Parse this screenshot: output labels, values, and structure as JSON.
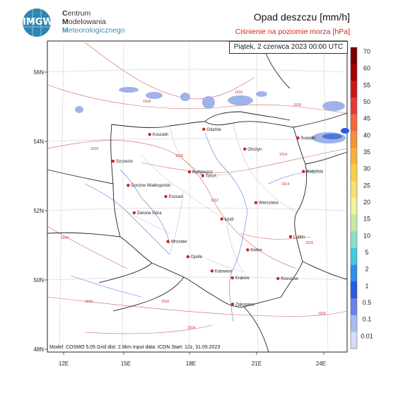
{
  "header": {
    "logo_text": "IMGW",
    "org_line1_initial": "C",
    "org_line1_rest": "entrum",
    "org_line2_initial": "M",
    "org_line2_rest": "odelowania",
    "org_line3_initial": "M",
    "org_line3_rest": "eteorologicznego",
    "title": "Opad deszczu [mm/h]",
    "subtitle": "Ciśnienie na poziomie morza [hPa]",
    "date": "Piątek, 2 czerwca 2023 00:00 UTC"
  },
  "footer": {
    "model_info": "Model: COSMO 5.05  Grid dist: 2.8km  Input data: ICON  Start: 12z, 31.05.2023"
  },
  "colors": {
    "rain_light": "#9fb3e8",
    "rain_medium": "#4a78d8",
    "isobar": "#d06060",
    "border": "#222222",
    "river": "#4a6ad8"
  },
  "axes": {
    "lon_labels": [
      "12E",
      "15E",
      "18E",
      "21E",
      "24E"
    ],
    "lat_labels": [
      "56N",
      "54N",
      "52N",
      "50N",
      "48N"
    ]
  },
  "cities": [
    {
      "name": "Koszalin",
      "lon": 16.2,
      "lat": 54.2
    },
    {
      "name": "Gdańsk",
      "lon": 18.65,
      "lat": 54.35
    },
    {
      "name": "Suwałki",
      "lon": 22.9,
      "lat": 54.1
    },
    {
      "name": "Olsztyn",
      "lon": 20.5,
      "lat": 53.78
    },
    {
      "name": "Szczecin",
      "lon": 14.55,
      "lat": 53.43
    },
    {
      "name": "Bydgoszcz",
      "lon": 18.0,
      "lat": 53.12
    },
    {
      "name": "Toruń",
      "lon": 18.6,
      "lat": 53.01
    },
    {
      "name": "Białystok",
      "lon": 23.15,
      "lat": 53.13
    },
    {
      "name": "Gorzów Wielkopolski",
      "lon": 15.23,
      "lat": 52.73
    },
    {
      "name": "Poznań",
      "lon": 16.93,
      "lat": 52.41
    },
    {
      "name": "Warszawa",
      "lon": 21.0,
      "lat": 52.23
    },
    {
      "name": "Zielona Góra",
      "lon": 15.5,
      "lat": 51.94
    },
    {
      "name": "Łódź",
      "lon": 19.46,
      "lat": 51.76
    },
    {
      "name": "Lublin",
      "lon": 22.57,
      "lat": 51.25
    },
    {
      "name": "Wrocław",
      "lon": 17.03,
      "lat": 51.11
    },
    {
      "name": "Kielce",
      "lon": 20.63,
      "lat": 50.87
    },
    {
      "name": "Opole",
      "lon": 17.93,
      "lat": 50.67
    },
    {
      "name": "Katowice",
      "lon": 19.02,
      "lat": 50.26
    },
    {
      "name": "Kraków",
      "lon": 19.94,
      "lat": 50.06
    },
    {
      "name": "Rzeszów",
      "lon": 22.0,
      "lat": 50.04
    },
    {
      "name": "Zakopane",
      "lon": 19.95,
      "lat": 49.3
    }
  ],
  "isobar_labels": [
    "1018",
    "1016",
    "1018",
    "1016",
    "1016",
    "1014",
    "1012",
    "1014",
    "1014",
    "1016",
    "1016",
    "1016",
    "1014",
    "1016"
  ],
  "colorbar": {
    "labels": [
      "70",
      "60",
      "55",
      "50",
      "45",
      "40",
      "35",
      "30",
      "25",
      "20",
      "15",
      "10",
      "5",
      "2",
      "1",
      "0.5",
      "0.1",
      "0.01"
    ],
    "colors": [
      "#7a0000",
      "#a80000",
      "#c81818",
      "#e23a3a",
      "#f06a3c",
      "#f59038",
      "#f8b040",
      "#f8cf48",
      "#f8e070",
      "#eef59a",
      "#c4eaa0",
      "#88e0c8",
      "#44c8e0",
      "#2a90e8",
      "#2a5ae0",
      "#6a82e8",
      "#a8b8f0",
      "#d8dcf8"
    ]
  }
}
